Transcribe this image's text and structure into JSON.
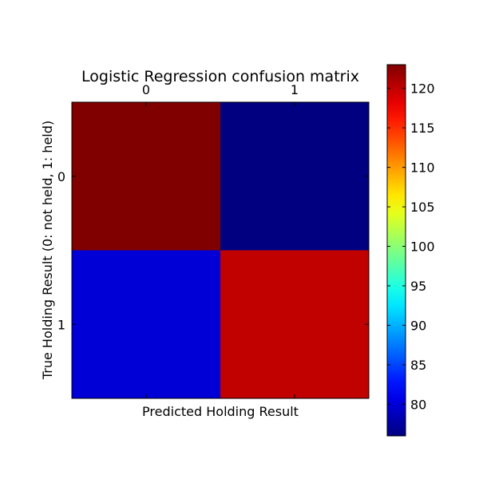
{
  "chart_data": {
    "type": "heatmap",
    "title": "Logistic Regression confusion matrix",
    "xlabel": "Predicted Holding Result",
    "ylabel": "True Holding Result (0: not held, 1: held)",
    "x_categories": [
      "0",
      "1"
    ],
    "y_categories": [
      "0",
      "1"
    ],
    "values": [
      [
        123,
        76
      ],
      [
        80,
        120
      ]
    ],
    "colormap": "jet",
    "colorbar": {
      "min": 76,
      "max": 123,
      "ticks": [
        "80",
        "85",
        "90",
        "95",
        "100",
        "105",
        "110",
        "115",
        "120"
      ]
    }
  }
}
